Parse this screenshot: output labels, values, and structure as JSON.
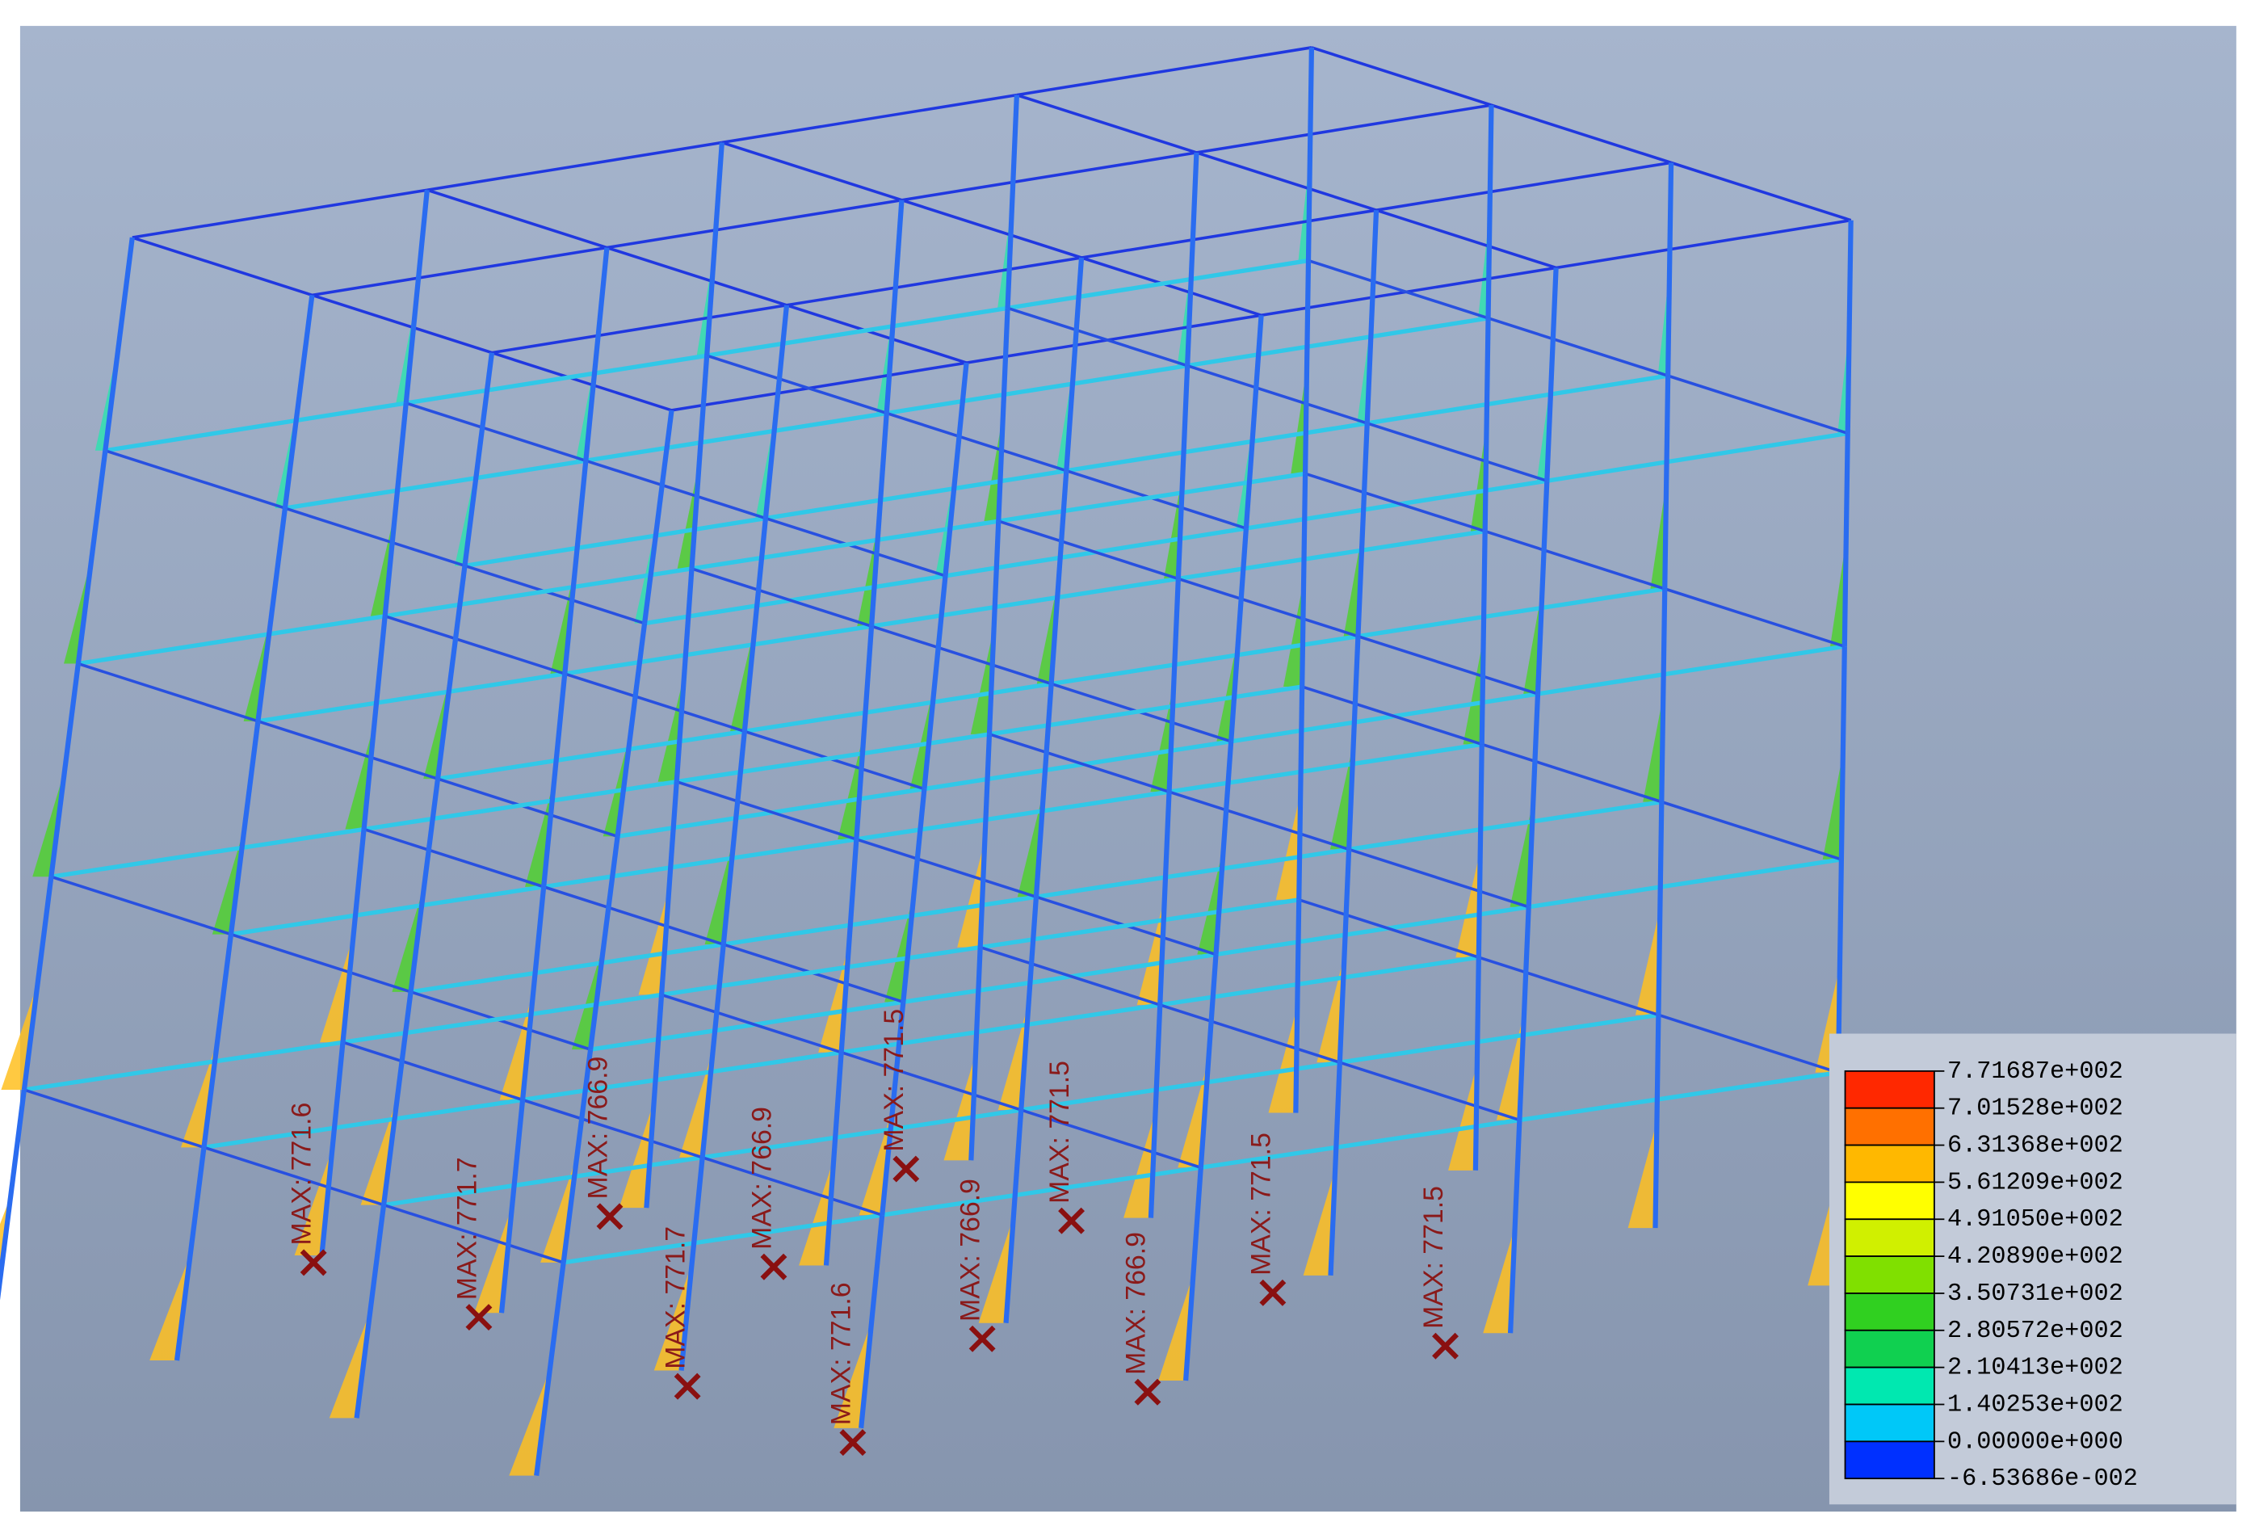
{
  "annotations": [
    "MAX: 771.6",
    "MAX: 771.7",
    "MAX: 766.9",
    "MAX: 771.7",
    "MAX: 766.9",
    "MAX: 771.6",
    "MAX: 771.5",
    "MAX: 766.9",
    "MAX: 771.5",
    "MAX: 766.9",
    "MAX: 771.5",
    "MAX: 771.5"
  ],
  "legend": {
    "labels": [
      "7.71687e+002",
      "7.01528e+002",
      "6.31368e+002",
      "5.61209e+002",
      "4.91050e+002",
      "4.20890e+002",
      "3.50731e+002",
      "2.80572e+002",
      "2.10413e+002",
      "1.40253e+002",
      "0.00000e+000",
      "-6.53686e-002"
    ]
  }
}
